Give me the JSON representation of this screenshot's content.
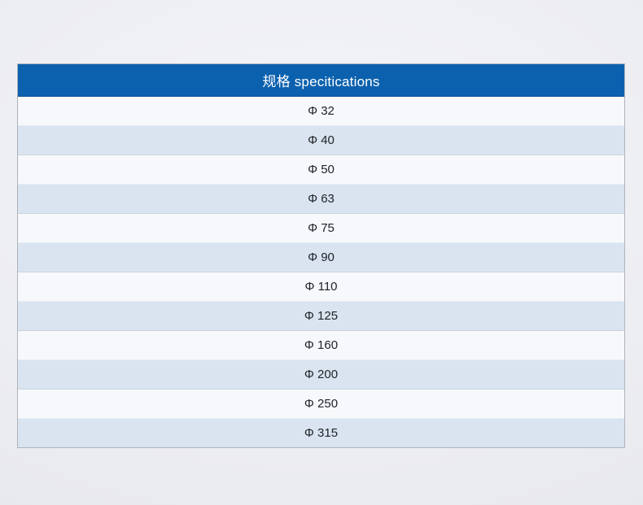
{
  "table": {
    "header": "规格 specitications",
    "rows": [
      "Φ 32",
      "Φ 40",
      "Φ 50",
      "Φ 63",
      "Φ 75",
      "Φ 90",
      "Φ 110",
      "Φ 125",
      "Φ 160",
      "Φ 200",
      "Φ 250",
      "Φ 315"
    ]
  },
  "colors": {
    "header_bg": "#0c61ae",
    "header_text": "#ffffff",
    "row_light": "#f6f8fb",
    "row_shaded": "#d9e4f0",
    "row_border": "#ccd3dc",
    "table_border": "#aeb4bd",
    "page_bg": "#ecedf1",
    "row_text": "#202328"
  }
}
